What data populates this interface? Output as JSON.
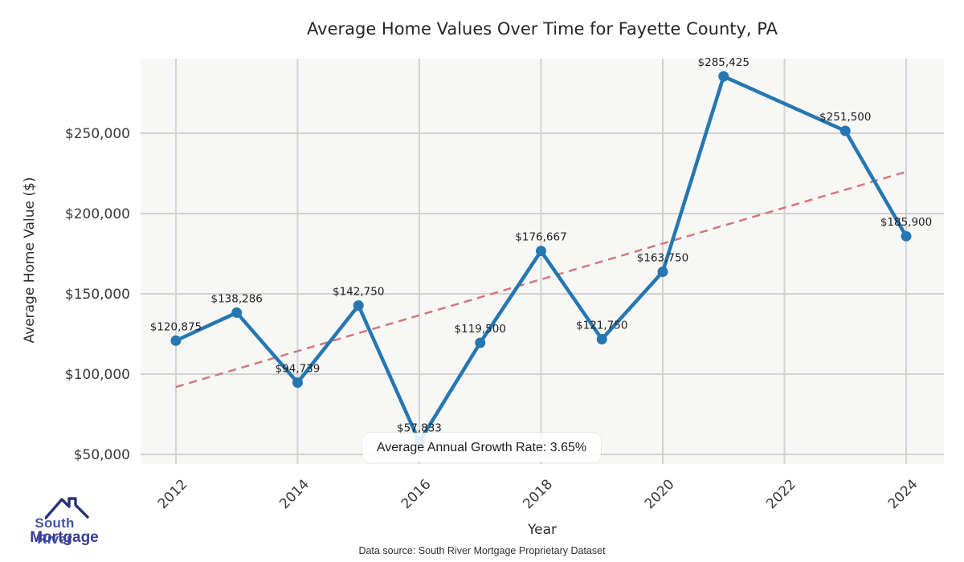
{
  "chart_data": {
    "type": "line",
    "title": "Average Home Values Over Time for Fayette County, PA",
    "xlabel": "Year",
    "ylabel": "Average Home Value ($)",
    "annotation": "Average Annual Growth Rate: 3.65%",
    "footer": "Data source: South River Mortgage Proprietary Dataset",
    "grid": true,
    "legend": "none",
    "x_range": [
      2011.42,
      2024.62
    ],
    "y_range": [
      44000,
      296500
    ],
    "x_ticks": [
      2012,
      2014,
      2016,
      2018,
      2020,
      2022,
      2024
    ],
    "y_ticks": [
      {
        "value": 50000,
        "label": "$50,000"
      },
      {
        "value": 100000,
        "label": "$100,000"
      },
      {
        "value": 150000,
        "label": "$150,000"
      },
      {
        "value": 200000,
        "label": "$200,000"
      },
      {
        "value": 250000,
        "label": "$250,000"
      }
    ],
    "series": [
      {
        "name": "Average Home Value",
        "color": "#2577b2",
        "points": [
          {
            "year": 2012,
            "value": 120875,
            "label": "$120,875"
          },
          {
            "year": 2013,
            "value": 138286,
            "label": "$138,286"
          },
          {
            "year": 2014,
            "value": 94739,
            "label": "$94,739"
          },
          {
            "year": 2015,
            "value": 142750,
            "label": "$142,750"
          },
          {
            "year": 2016,
            "value": 57833,
            "label": "$57,833"
          },
          {
            "year": 2017,
            "value": 119500,
            "label": "$119,500"
          },
          {
            "year": 2018,
            "value": 176667,
            "label": "$176,667"
          },
          {
            "year": 2019,
            "value": 121750,
            "label": "$121,750"
          },
          {
            "year": 2020,
            "value": 163750,
            "label": "$163,750"
          },
          {
            "year": 2021,
            "value": 285425,
            "label": "$285,425"
          },
          {
            "year": 2023,
            "value": 251500,
            "label": "$251,500"
          },
          {
            "year": 2024,
            "value": 185900,
            "label": "$185,900"
          }
        ]
      }
    ],
    "trend": {
      "name": "linear-trend",
      "style": "dashed",
      "color": "#d4777e",
      "points": [
        {
          "year": 2012,
          "value": 92000
        },
        {
          "year": 2024,
          "value": 226000
        }
      ]
    }
  },
  "logo": {
    "line1": "South River",
    "line2": "Mortgage",
    "color_line1": "#41589e",
    "color_line2": "#3a3d96",
    "color_roof": "#2a3175"
  }
}
